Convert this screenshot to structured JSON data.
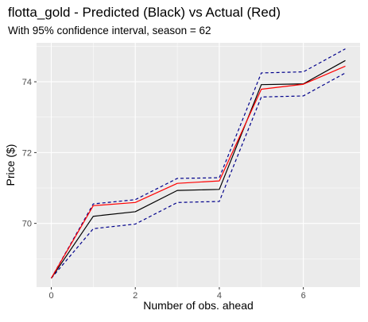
{
  "chart_data": {
    "type": "line",
    "title": "flotta_gold - Predicted (Black) vs Actual (Red)",
    "subtitle": "With 95% confidence interval, season = 62",
    "xlabel": "Number of obs. ahead",
    "ylabel": "Price ($)",
    "xlim": [
      -0.35,
      7.35
    ],
    "ylim": [
      68.2,
      75.1
    ],
    "xticks": [
      0,
      2,
      4,
      6
    ],
    "yticks": [
      70,
      72,
      74
    ],
    "grid": true,
    "legend": "none",
    "x": [
      0,
      1,
      2,
      3,
      4,
      5,
      6,
      7
    ],
    "series": [
      {
        "name": "Predicted",
        "values": [
          68.45,
          70.2,
          70.33,
          70.93,
          70.96,
          73.92,
          73.94,
          74.6
        ]
      },
      {
        "name": "Actual",
        "values": [
          68.45,
          70.5,
          70.59,
          71.13,
          71.2,
          73.79,
          73.93,
          74.44
        ]
      },
      {
        "name": "Upper 95%",
        "values": [
          68.45,
          70.55,
          70.67,
          71.27,
          71.29,
          74.25,
          74.28,
          74.93
        ]
      },
      {
        "name": "Lower 95%",
        "values": [
          68.45,
          69.85,
          69.98,
          70.59,
          70.62,
          73.57,
          73.6,
          74.25
        ]
      }
    ],
    "colors": {
      "Predicted": "#000000",
      "Actual": "#ff0000",
      "Upper 95%": "#00008b",
      "Lower 95%": "#00008b",
      "panel": "#ebebeb",
      "grid_major": "#ffffff",
      "tick_label": "#4d4d4d"
    }
  }
}
